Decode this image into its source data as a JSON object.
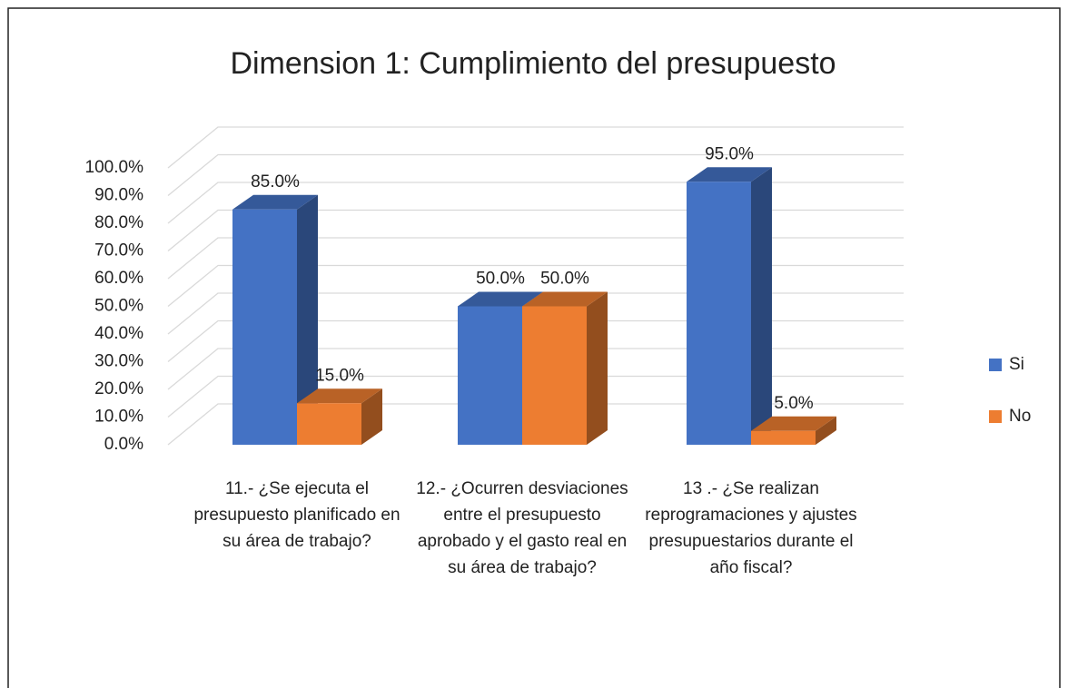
{
  "chart_data": {
    "type": "bar3d",
    "title": "Dimension 1: Cumplimiento del presupuesto",
    "categories": [
      "11.- ¿Se ejecuta el presupuesto planificado en su área de trabajo?",
      "12.- ¿Ocurren desviaciones entre el presupuesto aprobado y el gasto real en su área de trabajo?",
      "13 .- ¿Se realizan reprogramaciones y ajustes presupuestarios durante el año fiscal?"
    ],
    "series": [
      {
        "name": "Si",
        "color": "#4472c4",
        "values": [
          85,
          50,
          95
        ],
        "value_labels": [
          "85.0%",
          "50.0%",
          "95.0%"
        ]
      },
      {
        "name": "No",
        "color": "#ed7d31",
        "values": [
          15,
          50,
          5
        ],
        "value_labels": [
          "15.0%",
          "50.0%",
          "5.0%"
        ]
      }
    ],
    "ylim": [
      0,
      100
    ],
    "yticks": [
      {
        "value": 0,
        "label": "0.0%"
      },
      {
        "value": 10,
        "label": "10.0%"
      },
      {
        "value": 20,
        "label": "20.0%"
      },
      {
        "value": 30,
        "label": "30.0%"
      },
      {
        "value": 40,
        "label": "40.0%"
      },
      {
        "value": 50,
        "label": "50.0%"
      },
      {
        "value": 60,
        "label": "60.0%"
      },
      {
        "value": 70,
        "label": "70.0%"
      },
      {
        "value": 80,
        "label": "80.0%"
      },
      {
        "value": 90,
        "label": "90.0%"
      },
      {
        "value": 100,
        "label": "100.0%"
      }
    ],
    "grid": true,
    "legend": "right"
  }
}
